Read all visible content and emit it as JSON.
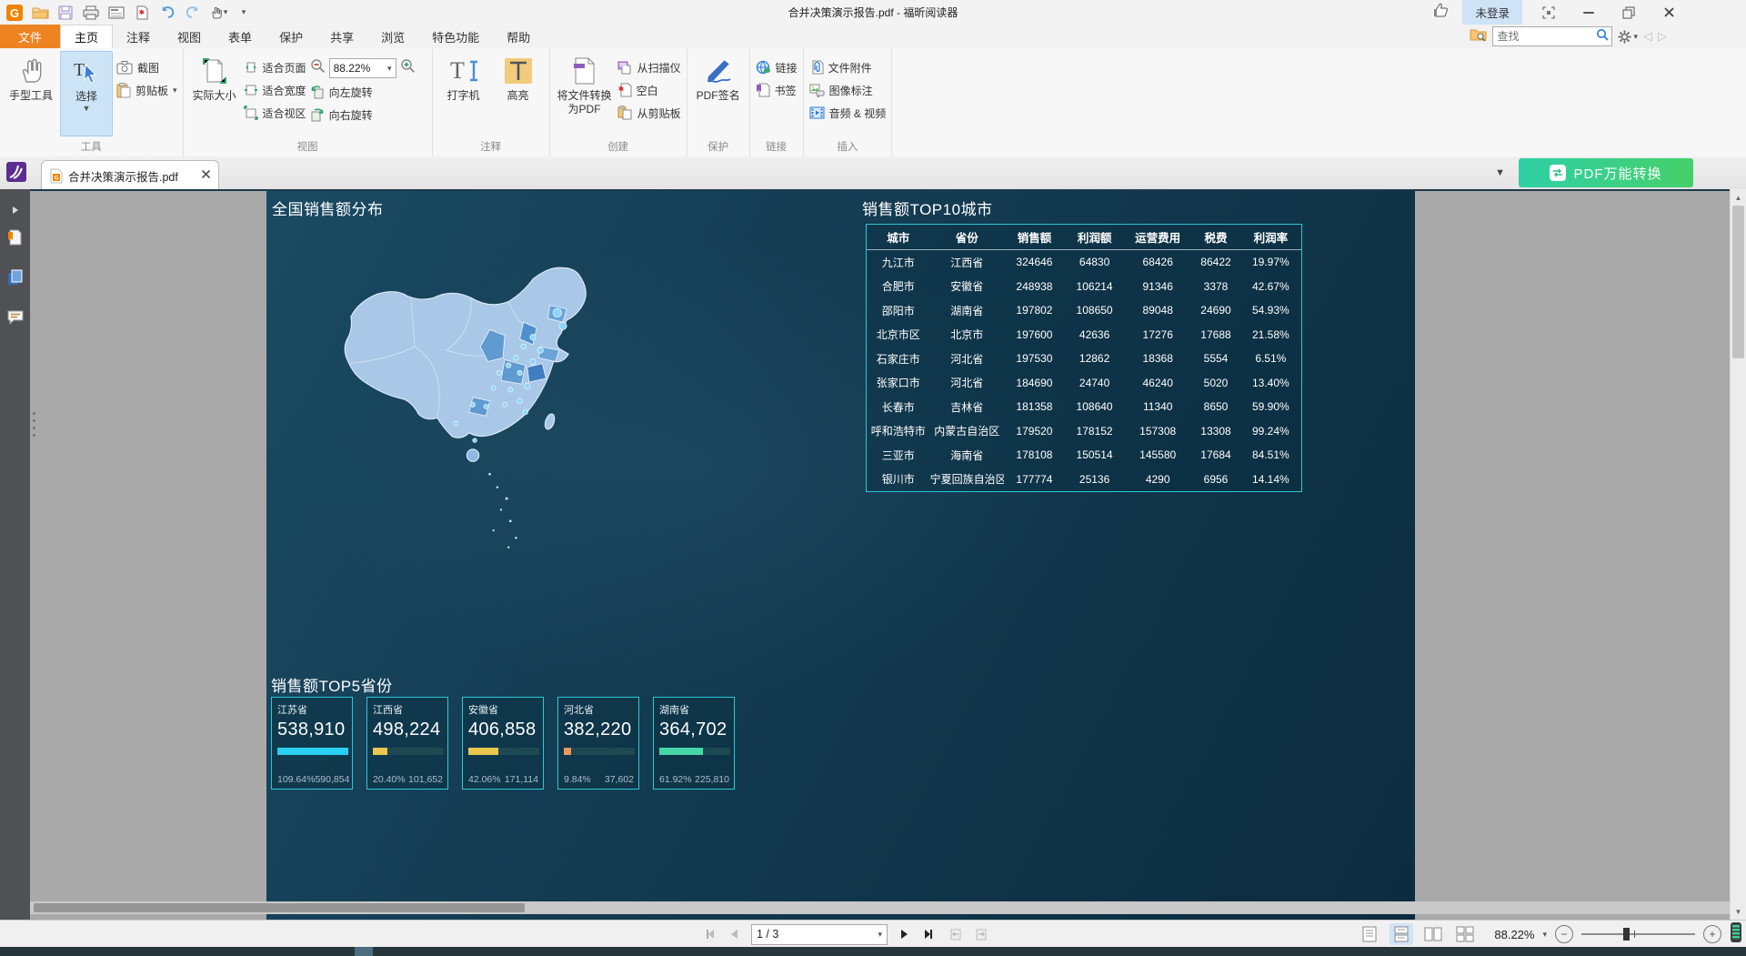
{
  "window": {
    "title": "合并决策演示报告.pdf - 福昕阅读器",
    "login": "未登录"
  },
  "menu": {
    "tabs": [
      "文件",
      "主页",
      "注释",
      "视图",
      "表单",
      "保护",
      "共享",
      "浏览",
      "特色功能",
      "帮助"
    ],
    "active_tab": "主页",
    "search_placeholder": "查找"
  },
  "ribbon": {
    "group_labels": [
      "工具",
      "视图",
      "注释",
      "创建",
      "保护",
      "链接",
      "插入"
    ],
    "buttons": {
      "hand": "手型工具",
      "select": "选择",
      "snapshot": "截图",
      "clipboard": "剪贴板",
      "actual_size": "实际大小",
      "fit_page": "适合页面",
      "fit_width": "适合宽度",
      "fit_visible": "适合视区",
      "rotate_left": "向左旋转",
      "rotate_right": "向右旋转",
      "typewriter": "打字机",
      "highlight": "高亮",
      "convert": "将文件转换为PDF",
      "from_scanner": "从扫描仪",
      "blank": "空白",
      "from_clipboard": "从剪贴板",
      "pdf_sign": "PDF签名",
      "link": "链接",
      "bookmark": "书签",
      "attach": "文件附件",
      "image_annot": "图像标注",
      "audio_video": "音频 & 视频"
    },
    "zoom_value": "88.22%"
  },
  "tabbar": {
    "document_tab": "合并决策演示报告.pdf",
    "convert_button": "PDF万能转换"
  },
  "page": {
    "map_title": "全国销售额分布",
    "table_title": "销售额TOP10城市",
    "table": {
      "headers": [
        "城市",
        "省份",
        "销售额",
        "利润额",
        "运营费用",
        "税费",
        "利润率"
      ],
      "rows": [
        [
          "九江市",
          "江西省",
          "324646",
          "64830",
          "68426",
          "86422",
          "19.97%"
        ],
        [
          "合肥市",
          "安徽省",
          "248938",
          "106214",
          "91346",
          "3378",
          "42.67%"
        ],
        [
          "邵阳市",
          "湖南省",
          "197802",
          "108650",
          "89048",
          "24690",
          "54.93%"
        ],
        [
          "北京市区",
          "北京市",
          "197600",
          "42636",
          "17276",
          "17688",
          "21.58%"
        ],
        [
          "石家庄市",
          "河北省",
          "197530",
          "12862",
          "18368",
          "5554",
          "6.51%"
        ],
        [
          "张家口市",
          "河北省",
          "184690",
          "24740",
          "46240",
          "5020",
          "13.40%"
        ],
        [
          "长春市",
          "吉林省",
          "181358",
          "108640",
          "11340",
          "8650",
          "59.90%"
        ],
        [
          "呼和浩特市",
          "内蒙古自治区",
          "179520",
          "178152",
          "157308",
          "13308",
          "99.24%"
        ],
        [
          "三亚市",
          "海南省",
          "178108",
          "150514",
          "145580",
          "17684",
          "84.51%"
        ],
        [
          "银川市",
          "宁夏回族自治区",
          "177774",
          "25136",
          "4290",
          "6956",
          "14.14%"
        ]
      ]
    },
    "top5_title": "销售额TOP5省份",
    "cards": [
      {
        "province": "江苏省",
        "value": "538,910",
        "percent": "109.64%",
        "amount": "590,854",
        "bar_pct": 100,
        "bar_color": "#29d0f2"
      },
      {
        "province": "江西省",
        "value": "498,224",
        "percent": "20.40%",
        "amount": "101,652",
        "bar_pct": 20,
        "bar_color": "#e9c74d"
      },
      {
        "province": "安徽省",
        "value": "406,858",
        "percent": "42.06%",
        "amount": "171,114",
        "bar_pct": 42,
        "bar_color": "#e9c74d"
      },
      {
        "province": "河北省",
        "value": "382,220",
        "percent": "9.84%",
        "amount": "37,602",
        "bar_pct": 10,
        "bar_color": "#ef9757"
      },
      {
        "province": "湖南省",
        "value": "364,702",
        "percent": "61.92%",
        "amount": "225,810",
        "bar_pct": 62,
        "bar_color": "#46d6a8"
      }
    ],
    "accent_border": "#2bc8d6"
  },
  "statusbar": {
    "page_label": "1 / 3",
    "zoom_value": "88.22%"
  }
}
